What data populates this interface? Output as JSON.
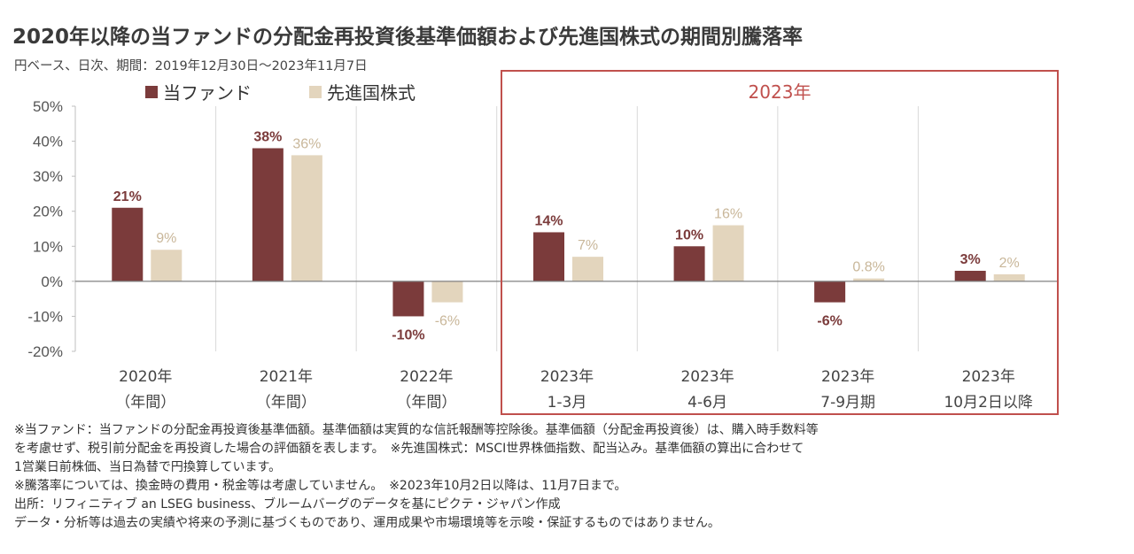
{
  "header": {
    "title": "2020年以降の当ファンドの分配金再投資後基準価額および先進国株式の期間別騰落率",
    "subtitle": "円ベース、日次、期間：2019年12月30日～2023年11月7日"
  },
  "highlight": {
    "label": "2023年",
    "color": "#c0504d"
  },
  "colors": {
    "fund": "#7b3b3b",
    "index": "#e3d5bd",
    "fund_label": "#7b3b3b",
    "index_label": "#c9b79a"
  },
  "chart_data": {
    "type": "bar",
    "categories": [
      [
        "2020年",
        "（年間）"
      ],
      [
        "2021年",
        "（年間）"
      ],
      [
        "2022年",
        "（年間）"
      ],
      [
        "2023年",
        "1-3月"
      ],
      [
        "2023年",
        "4-6月"
      ],
      [
        "2023年",
        "7-9月期"
      ],
      [
        "2023年",
        "10月2日以降"
      ]
    ],
    "series": [
      {
        "name": "当ファンド",
        "values": [
          21,
          38,
          -10,
          14,
          10,
          -6,
          3
        ],
        "labels": [
          "21%",
          "38%",
          "-10%",
          "14%",
          "10%",
          "-6%",
          "3%"
        ]
      },
      {
        "name": "先進国株式",
        "values": [
          9,
          36,
          -6,
          7,
          16,
          0.8,
          2
        ],
        "labels": [
          "9%",
          "36%",
          "-6%",
          "7%",
          "16%",
          "0.8%",
          "2%"
        ]
      }
    ],
    "ylim": [
      -20,
      50
    ],
    "yticks": [
      50,
      40,
      30,
      20,
      10,
      0,
      -10,
      -20
    ],
    "ytick_labels": [
      "50%",
      "40%",
      "30%",
      "20%",
      "10%",
      "0%",
      "-10%",
      "-20%"
    ],
    "grid": "vertical",
    "legend": "top-left"
  },
  "notes": [
    "※当ファンド：当ファンドの分配金再投資後基準価額。基準価額は実質的な信託報酬等控除後。基準価額（分配金再投資後）は、購入時手数料等",
    "を考慮せず、税引前分配金を再投資した場合の評価額を表します。　※先進国株式：MSCI世界株価指数、配当込み。基準価額の算出に合わせて",
    "1営業日前株価、当日為替で円換算しています。",
    "※騰落率については、換金時の費用・税金等は考慮していません。　※2023年10月2日以降は、11月7日まで。",
    "出所：リフィニティブ an LSEG business、ブルームバーグのデータを基にピクテ・ジャパン作成",
    "データ・分析等は過去の実績や将来の予測に基づくものであり、運用成果や市場環境等を示唆・保証するものではありません。"
  ]
}
